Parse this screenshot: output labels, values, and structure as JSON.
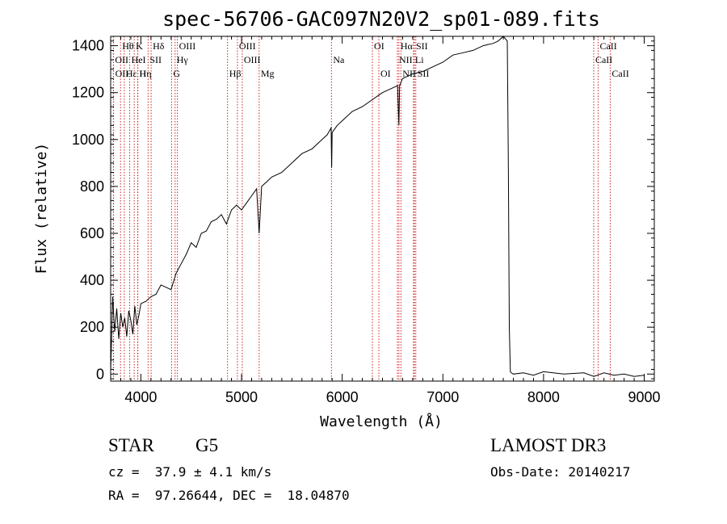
{
  "chart_data": {
    "type": "line",
    "title": "spec-56706-GAC097N20V2_sp01-089.fits",
    "xlabel": "Wavelength (Å)",
    "ylabel": "Flux (relative)",
    "xlim": [
      3700,
      9100
    ],
    "ylim": [
      -30,
      1440
    ],
    "x_ticks": [
      4000,
      5000,
      6000,
      7000,
      8000,
      9000
    ],
    "x_tick_labels": [
      "4000",
      "5000",
      "6000",
      "7000",
      "8000",
      "9000"
    ],
    "y_ticks": [
      0,
      200,
      400,
      600,
      800,
      1000,
      1200,
      1400
    ],
    "y_tick_labels": [
      "0",
      "200",
      "400",
      "600",
      "800",
      "1000",
      "1200",
      "1400"
    ],
    "series": [
      {
        "name": "flux",
        "x": [
          3700,
          3720,
          3740,
          3760,
          3780,
          3800,
          3820,
          3840,
          3860,
          3880,
          3900,
          3920,
          3940,
          3960,
          3980,
          4000,
          4050,
          4100,
          4150,
          4200,
          4250,
          4300,
          4350,
          4400,
          4450,
          4500,
          4550,
          4600,
          4650,
          4700,
          4750,
          4800,
          4850,
          4900,
          4950,
          5000,
          5050,
          5100,
          5150,
          5175,
          5200,
          5250,
          5300,
          5400,
          5500,
          5600,
          5700,
          5800,
          5850,
          5890,
          5895,
          5900,
          5950,
          6000,
          6100,
          6200,
          6300,
          6400,
          6500,
          6550,
          6563,
          6570,
          6600,
          6700,
          6800,
          6900,
          7000,
          7100,
          7200,
          7300,
          7400,
          7500,
          7550,
          7600,
          7640,
          7650,
          7660,
          7670,
          7680,
          7700,
          7800,
          7900,
          8000,
          8200,
          8400,
          8500,
          8600,
          8700,
          8800,
          8900,
          9000
        ],
        "y": [
          10,
          330,
          180,
          280,
          150,
          260,
          200,
          240,
          160,
          270,
          230,
          170,
          290,
          210,
          250,
          300,
          310,
          330,
          340,
          380,
          370,
          360,
          430,
          470,
          510,
          560,
          540,
          600,
          610,
          650,
          660,
          680,
          640,
          700,
          720,
          700,
          730,
          760,
          790,
          600,
          800,
          820,
          840,
          860,
          900,
          940,
          960,
          1000,
          1020,
          1050,
          880,
          1030,
          1060,
          1080,
          1120,
          1140,
          1170,
          1200,
          1220,
          1230,
          1060,
          1230,
          1260,
          1280,
          1290,
          1310,
          1330,
          1360,
          1370,
          1380,
          1400,
          1410,
          1420,
          1440,
          1420,
          900,
          200,
          10,
          5,
          0,
          5,
          -5,
          10,
          0,
          5,
          -10,
          5,
          -5,
          0,
          -10,
          -5
        ]
      }
    ],
    "spectral_lines": [
      {
        "label": "Hθ",
        "x": 3798,
        "row": 0
      },
      {
        "label": "K",
        "x": 3934,
        "row": 0
      },
      {
        "label": "Hδ",
        "x": 4102,
        "row": 0
      },
      {
        "label": "OIII",
        "x": 4363,
        "row": 0
      },
      {
        "label": "OIII",
        "x": 4959,
        "row": 0
      },
      {
        "label": "OI",
        "x": 6300,
        "row": 0
      },
      {
        "label": "Hα",
        "x": 6563,
        "row": 0
      },
      {
        "label": "SII",
        "x": 6717,
        "row": 0
      },
      {
        "label": "CaII",
        "x": 8542,
        "row": 0
      },
      {
        "label": "OII",
        "x": 3727,
        "row": 1
      },
      {
        "label": "HeI",
        "x": 3889,
        "row": 1
      },
      {
        "label": "SII",
        "x": 4072,
        "row": 1
      },
      {
        "label": "Hγ",
        "x": 4340,
        "row": 1
      },
      {
        "label": "OIII",
        "x": 5007,
        "row": 1
      },
      {
        "label": "Na",
        "x": 5893,
        "row": 1
      },
      {
        "label": "NII",
        "x": 6548,
        "row": 1
      },
      {
        "label": "Li",
        "x": 6708,
        "row": 1
      },
      {
        "label": "CaII",
        "x": 8498,
        "row": 1
      },
      {
        "label": "OII",
        "x": 3729,
        "row": 2
      },
      {
        "label": "Hε",
        "x": 3835,
        "row": 2
      },
      {
        "label": "Hη",
        "x": 3970,
        "row": 2
      },
      {
        "label": "H",
        "x": 3968,
        "row": 2
      },
      {
        "label": "G",
        "x": 4305,
        "row": 2
      },
      {
        "label": "Hβ",
        "x": 4861,
        "row": 2
      },
      {
        "label": "Mg",
        "x": 5175,
        "row": 2
      },
      {
        "label": "OI",
        "x": 6364,
        "row": 2
      },
      {
        "label": "NII",
        "x": 6583,
        "row": 2
      },
      {
        "label": "SII",
        "x": 6731,
        "row": 2
      },
      {
        "label": "CaII",
        "x": 8662,
        "row": 2
      }
    ]
  },
  "info": {
    "object_type": "STAR",
    "subclass": "G5",
    "survey": "LAMOST DR3",
    "redshift": "cz =  37.9 ± 4.1 km/s",
    "obs_date": "Obs-Date: 20140217",
    "coords": "RA =  97.26644, DEC =  18.04870"
  }
}
